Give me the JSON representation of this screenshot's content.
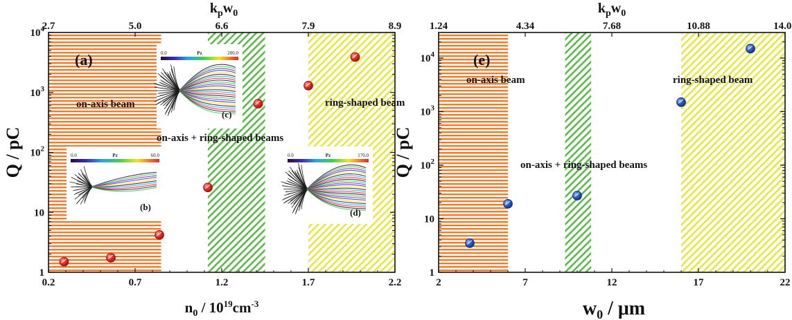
{
  "colors": {
    "orange": "#f07a2a",
    "green": "#5cb84a",
    "yellow": "#e6e84a",
    "red_point": "#e8332a",
    "blue_point": "#2f62c9"
  },
  "chart_data": [
    {
      "type": "scatter",
      "panel": "(a)",
      "xlabel_main": "n",
      "xlabel_sub": "0",
      "xlabel_rest": " / 10",
      "xlabel_sup": "19",
      "xlabel_unit": "cm",
      "xlabel_unit_sup": "-3",
      "ylabel": "Q / pC",
      "top_label_main": "k",
      "top_label_sub1": "p",
      "top_label_mid": "w",
      "top_label_sub2": "0",
      "x_range": [
        0.2,
        2.2
      ],
      "y_range_log": [
        1,
        10000
      ],
      "x_ticks": [
        "0.2",
        "0.7",
        "1.2",
        "1.7",
        "2.2"
      ],
      "y_ticks": [
        "1",
        "10",
        "10",
        "10",
        "10"
      ],
      "y_tick_sups": [
        "",
        "",
        "2",
        "3",
        "4"
      ],
      "top_ticks": [
        {
          "x": 0.2,
          "label": "2.7"
        },
        {
          "x": 0.7,
          "label": "5.0"
        },
        {
          "x": 1.2,
          "label": "6.6"
        },
        {
          "x": 1.7,
          "label": "7.9"
        },
        {
          "x": 2.2,
          "label": "8.9"
        }
      ],
      "regions": [
        {
          "x0": 0.2,
          "x1": 0.85,
          "kind": "orange"
        },
        {
          "x0": 1.12,
          "x1": 1.45,
          "kind": "green"
        },
        {
          "x0": 1.7,
          "x1": 2.2,
          "kind": "yellow"
        }
      ],
      "points": [
        {
          "x": 0.29,
          "y": 1.5
        },
        {
          "x": 0.56,
          "y": 1.75
        },
        {
          "x": 0.84,
          "y": 4.2
        },
        {
          "x": 1.12,
          "y": 26
        },
        {
          "x": 1.41,
          "y": 650
        },
        {
          "x": 1.7,
          "y": 1300
        },
        {
          "x": 1.97,
          "y": 3900
        }
      ],
      "annotations": [
        "on-axis beam",
        "ring-shaped beam",
        "on-axis + ring-shaped beams"
      ],
      "insets": [
        {
          "label": "(b)",
          "cbar_min": "0.0",
          "cbar_title": "Pz",
          "cbar_max": "60.0"
        },
        {
          "label": "(c)",
          "cbar_min": "0.0",
          "cbar_title": "Pz",
          "cbar_max": "200.0"
        },
        {
          "label": "(d)",
          "cbar_min": "0.0",
          "cbar_title": "Pz",
          "cbar_max": "170.0"
        }
      ]
    },
    {
      "type": "scatter",
      "panel": "(e)",
      "xlabel_main": "w",
      "xlabel_sub": "0",
      "xlabel_rest": " / μm",
      "ylabel": "Q / pC",
      "top_label_main": "k",
      "top_label_sub1": "p",
      "top_label_mid": "w",
      "top_label_sub2": "0",
      "x_range": [
        2,
        22
      ],
      "y_range_log": [
        1,
        30000
      ],
      "x_ticks": [
        "2",
        "7",
        "12",
        "17",
        "22"
      ],
      "y_ticks": [
        "1",
        "10",
        "10",
        "10",
        "10"
      ],
      "y_tick_sups": [
        "",
        "",
        "2",
        "3",
        "4"
      ],
      "top_ticks": [
        {
          "x": 2,
          "label": "1.24"
        },
        {
          "x": 7,
          "label": "4.34"
        },
        {
          "x": 12,
          "label": "7.68"
        },
        {
          "x": 17,
          "label": "10.88"
        },
        {
          "x": 22,
          "label": "14.08"
        }
      ],
      "regions": [
        {
          "x0": 2,
          "x1": 6,
          "kind": "orange"
        },
        {
          "x0": 9.3,
          "x1": 10.8,
          "kind": "green"
        },
        {
          "x0": 16,
          "x1": 22,
          "kind": "yellow"
        }
      ],
      "points": [
        {
          "x": 3.8,
          "y": 3.5
        },
        {
          "x": 6.0,
          "y": 19
        },
        {
          "x": 10.0,
          "y": 27
        },
        {
          "x": 16.0,
          "y": 1500
        },
        {
          "x": 20.0,
          "y": 15000
        }
      ],
      "annotations": [
        "on-axis beam",
        "ring-shaped beam",
        "on-axis +  ring-shaped beams"
      ]
    }
  ]
}
